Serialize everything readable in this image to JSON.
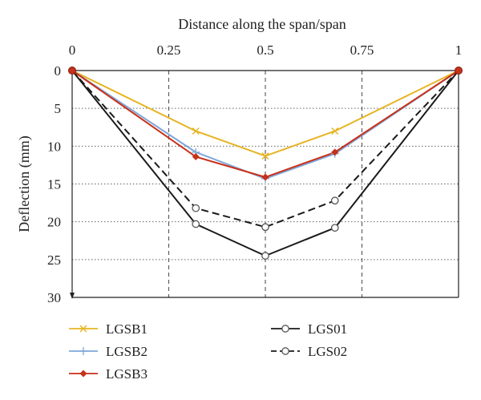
{
  "chart_data": {
    "type": "line",
    "title": "",
    "xlabel": "Distance along the span/span",
    "ylabel": "Deflection (mm)",
    "xlim": [
      0,
      1
    ],
    "ylim": [
      0,
      30
    ],
    "y_inverted": true,
    "x_axis_position": "top",
    "grid": true,
    "x_ticks": [
      0,
      0.25,
      0.5,
      0.75,
      1
    ],
    "x_tick_labels": [
      "0",
      "0.25",
      "0.5",
      "0.75",
      "1"
    ],
    "y_ticks": [
      0,
      5,
      10,
      15,
      20,
      25,
      30
    ],
    "y_tick_labels": [
      "0",
      "5",
      "10",
      "15",
      "20",
      "25",
      "30"
    ],
    "legend_position": "bottom",
    "series": [
      {
        "name": "LGSB1",
        "color": "#e6b422",
        "marker": "x",
        "dash": "solid",
        "x": [
          0,
          0.32,
          0.5,
          0.68,
          1
        ],
        "y": [
          0,
          8.0,
          11.3,
          8.0,
          0
        ]
      },
      {
        "name": "LGS01",
        "color": "#1a1a1a",
        "marker": "circle-open",
        "dash": "solid",
        "x": [
          0,
          0.32,
          0.5,
          0.68,
          1
        ],
        "y": [
          0,
          20.3,
          24.5,
          20.8,
          0
        ]
      },
      {
        "name": "LGSB2",
        "color": "#7fa7d9",
        "marker": "plus",
        "dash": "solid",
        "x": [
          0,
          0.32,
          0.5,
          0.68,
          1
        ],
        "y": [
          0,
          10.8,
          14.3,
          11.0,
          0
        ]
      },
      {
        "name": "LGS02",
        "color": "#1a1a1a",
        "marker": "circle-open",
        "dash": "dashed",
        "x": [
          0,
          0.32,
          0.5,
          0.68,
          1
        ],
        "y": [
          0,
          18.2,
          20.7,
          17.2,
          0
        ]
      },
      {
        "name": "LGSB3",
        "color": "#c8311a",
        "marker": "diamond",
        "dash": "solid",
        "x": [
          0,
          0.32,
          0.5,
          0.68,
          1
        ],
        "y": [
          0,
          11.4,
          14.1,
          10.8,
          0
        ]
      }
    ],
    "end_points": {
      "color": "#c8311a"
    }
  }
}
